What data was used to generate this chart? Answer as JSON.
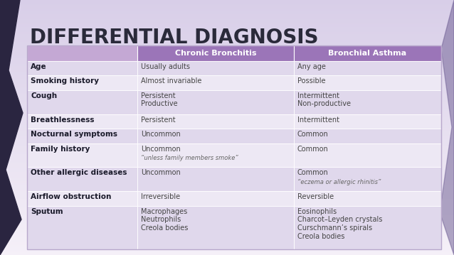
{
  "title": "DIFFERENTIAL DIAGNOSIS",
  "title_fontsize": 20,
  "title_color": "#2a2a3a",
  "header_bg_left": "#c8aad8",
  "header_bg_right": "#9b75b8",
  "header_text_color": "#ffffff",
  "header_fontsize": 8,
  "row_label_fontsize": 7.5,
  "row_value_fontsize": 7,
  "note_fontsize": 6,
  "col1_label": "Chronic Bronchitis",
  "col2_label": "Bronchial Asthma",
  "rows": [
    {
      "label": "Age",
      "col1": "Usually adults",
      "col1_note": "",
      "col2": "Any age",
      "col2_note": ""
    },
    {
      "label": "Smoking history",
      "col1": "Almost invariable",
      "col1_note": "",
      "col2": "Possible",
      "col2_note": ""
    },
    {
      "label": "Cough",
      "col1": "Persistent\nProductive",
      "col1_note": "",
      "col2": "Intermittent\nNon-productive",
      "col2_note": ""
    },
    {
      "label": "Breathlessness",
      "col1": "Persistent",
      "col1_note": "",
      "col2": "Intermittent",
      "col2_note": ""
    },
    {
      "label": "Nocturnal symptoms",
      "col1": "Uncommon",
      "col1_note": "",
      "col2": "Common",
      "col2_note": ""
    },
    {
      "label": "Family history",
      "col1": "Uncommon",
      "col1_note": "“unless family members smoke”",
      "col2": "Common",
      "col2_note": ""
    },
    {
      "label": "Other allergic diseases",
      "col1": "Uncommon",
      "col1_note": "",
      "col2": "Common",
      "col2_note": "“eczema or allergic rhinitis”"
    },
    {
      "label": "Airflow obstruction",
      "col1": "Irreversible",
      "col1_note": "",
      "col2": "Reversible",
      "col2_note": ""
    },
    {
      "label": "Sputum",
      "col1": "Macrophages\nNeutrophils\nCreola bodies",
      "col1_note": "",
      "col2": "Eosinophils\nCharcot–Leyden crystals\nCurschmann’s spirals\nCreola bodies",
      "col2_note": ""
    }
  ],
  "bg_top": "#d8cee8",
  "bg_bottom": "#f0eaf5",
  "wave_color": "#2a2540",
  "row_bg_odd": "#e0d8ec",
  "row_bg_even": "#ede8f4",
  "border_color": "#b8a8cc",
  "text_color_label": "#1a1a2a",
  "text_color_value": "#444444"
}
